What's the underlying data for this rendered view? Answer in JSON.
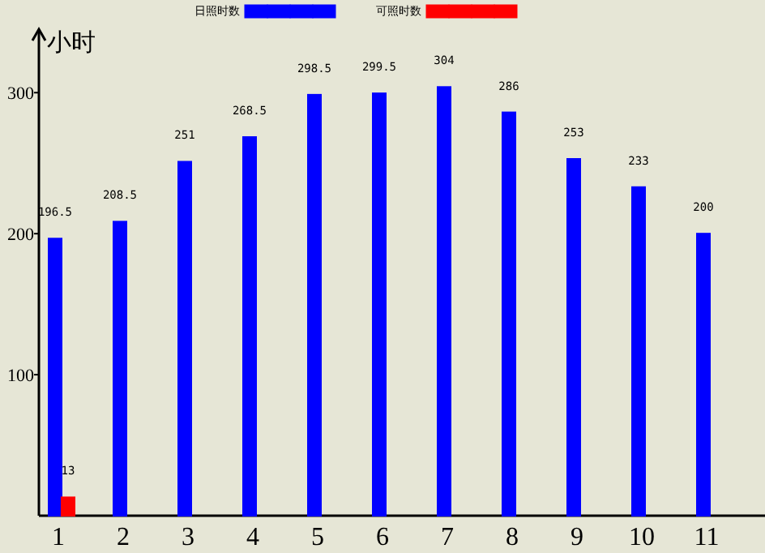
{
  "chart_data": {
    "type": "bar",
    "ylabel": "小时",
    "categories": [
      "1",
      "2",
      "3",
      "4",
      "5",
      "6",
      "7",
      "8",
      "9",
      "10",
      "11"
    ],
    "series": [
      {
        "name": "日照时数",
        "color": "#0000ff",
        "values": [
          196.5,
          208.5,
          251,
          268.5,
          298.5,
          299.5,
          304,
          286,
          253,
          233,
          200
        ],
        "value_labels": [
          "196.5",
          "208.5",
          "251",
          "268.5",
          "298.5",
          "299.5",
          "304",
          "286",
          "253",
          "233",
          "200"
        ]
      },
      {
        "name": "可照时数",
        "color": "#ff0000",
        "values": [
          13,
          0,
          0,
          0,
          0,
          0,
          0,
          0,
          0,
          0,
          0
        ],
        "value_labels": [
          "13",
          null,
          null,
          null,
          null,
          null,
          null,
          null,
          null,
          null,
          null
        ]
      }
    ],
    "ylim": [
      0,
      345
    ],
    "yticks": [
      100,
      200,
      300
    ],
    "grid": false,
    "legend": "top"
  }
}
